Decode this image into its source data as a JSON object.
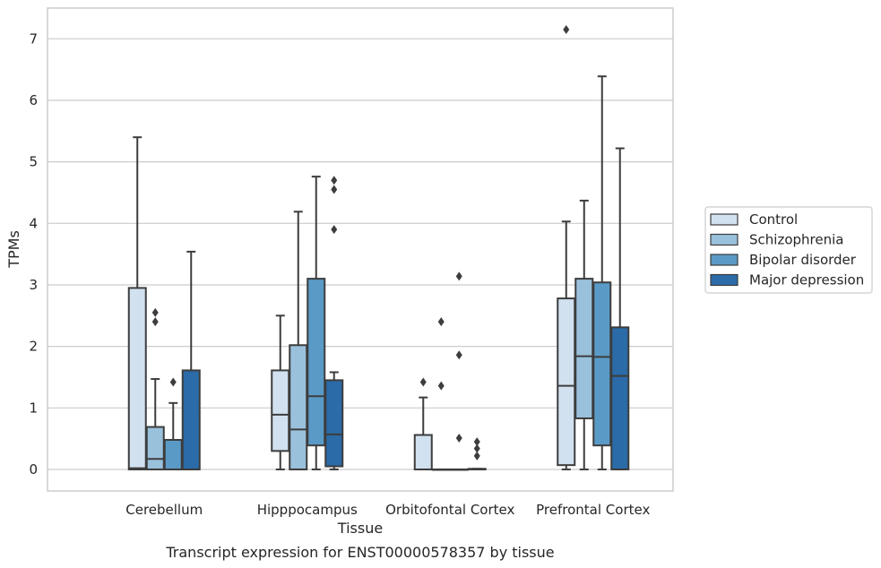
{
  "chart_data": {
    "type": "box",
    "title": "",
    "caption": "Transcript expression for ENST00000578357 by tissue",
    "xlabel": "Tissue",
    "ylabel": "TPMs",
    "ylim": [
      -0.35,
      7.5
    ],
    "yticks": [
      0,
      1,
      2,
      3,
      4,
      5,
      6,
      7
    ],
    "grid": "horizontal",
    "legend_position": "right",
    "categories": [
      "Cerebellum",
      "Hipppocampus",
      "Orbitofontal Cortex",
      "Prefrontal Cortex"
    ],
    "series": [
      {
        "name": "Control",
        "color": "#d2e1f0",
        "boxes": [
          {
            "whislo": 0,
            "q1": 0,
            "med": 0.02,
            "q3": 2.95,
            "whishi": 5.4,
            "fliers": []
          },
          {
            "whislo": 0,
            "q1": 0.3,
            "med": 0.89,
            "q3": 1.61,
            "whishi": 2.5,
            "fliers": []
          },
          {
            "whislo": 0,
            "q1": 0,
            "med": 0,
            "q3": 0.56,
            "whishi": 1.17,
            "fliers": [
              1.42
            ]
          },
          {
            "whislo": 0,
            "q1": 0.07,
            "med": 1.36,
            "q3": 2.78,
            "whishi": 4.03,
            "fliers": [
              7.15
            ]
          }
        ]
      },
      {
        "name": "Schizophrenia",
        "color": "#9ac1dc",
        "boxes": [
          {
            "whislo": 0,
            "q1": 0,
            "med": 0.17,
            "q3": 0.69,
            "whishi": 1.47,
            "fliers": [
              2.4,
              2.55
            ]
          },
          {
            "whislo": 0,
            "q1": 0,
            "med": 0.65,
            "q3": 2.02,
            "whishi": 4.19,
            "fliers": []
          },
          {
            "whislo": 0,
            "q1": 0,
            "med": 0,
            "q3": 0,
            "whishi": 0,
            "fliers": [
              1.36,
              2.4
            ]
          },
          {
            "whislo": 0,
            "q1": 0.83,
            "med": 1.84,
            "q3": 3.1,
            "whishi": 4.37,
            "fliers": []
          }
        ]
      },
      {
        "name": "Bipolar disorder",
        "color": "#5a9ac6",
        "boxes": [
          {
            "whislo": 0,
            "q1": 0,
            "med": 0,
            "q3": 0.48,
            "whishi": 1.08,
            "fliers": [
              1.42
            ]
          },
          {
            "whislo": 0,
            "q1": 0.39,
            "med": 1.19,
            "q3": 3.1,
            "whishi": 4.76,
            "fliers": []
          },
          {
            "whislo": 0,
            "q1": 0,
            "med": 0,
            "q3": 0,
            "whishi": 0,
            "fliers": [
              0.51,
              1.86,
              3.14
            ]
          },
          {
            "whislo": 0,
            "q1": 0.39,
            "med": 1.83,
            "q3": 3.04,
            "whishi": 6.39,
            "fliers": []
          }
        ]
      },
      {
        "name": "Major depression",
        "color": "#2a6ba8",
        "boxes": [
          {
            "whislo": 0,
            "q1": 0,
            "med": 0,
            "q3": 1.61,
            "whishi": 3.54,
            "fliers": []
          },
          {
            "whislo": 0,
            "q1": 0.05,
            "med": 0.57,
            "q3": 1.45,
            "whishi": 1.58,
            "fliers": [
              3.9,
              4.55,
              4.7
            ]
          },
          {
            "whislo": 0,
            "q1": 0,
            "med": 0,
            "q3": 0.01,
            "whishi": 0.01,
            "fliers": [
              0.22,
              0.34,
              0.45
            ]
          },
          {
            "whislo": 0,
            "q1": 0,
            "med": 1.52,
            "q3": 2.31,
            "whishi": 5.22,
            "fliers": []
          }
        ]
      }
    ]
  }
}
